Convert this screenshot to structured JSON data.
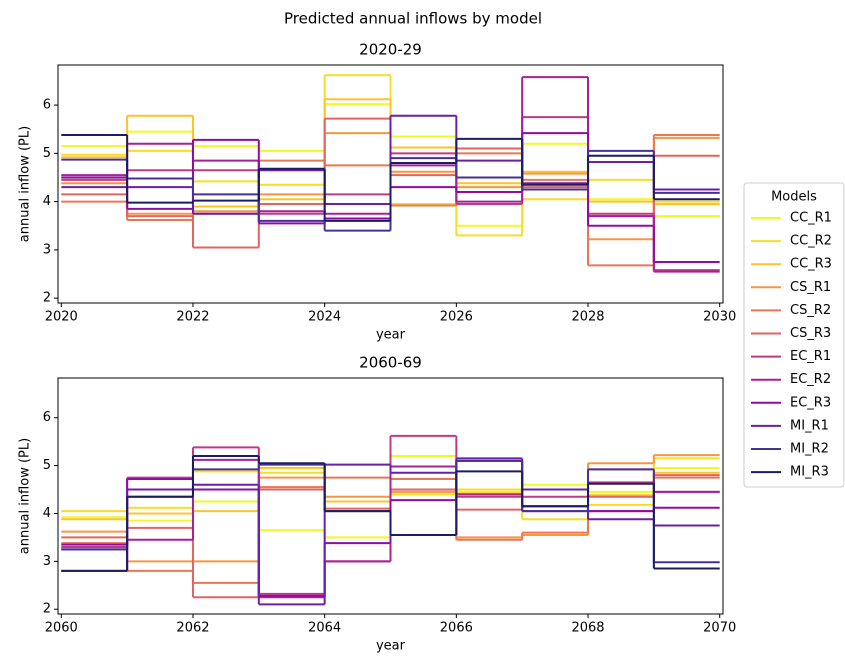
{
  "title": "Predicted annual inflows by model",
  "legend_title": "Models",
  "chart_data": [
    {
      "type": "step",
      "title": "2020-29",
      "xlabel": "year",
      "ylabel": "annual inflow (PL)",
      "x": [
        2020,
        2021,
        2022,
        2023,
        2024,
        2025,
        2026,
        2027,
        2028,
        2029
      ],
      "xlim": [
        2019.95,
        2030.05
      ],
      "xticks": [
        2020,
        2022,
        2024,
        2026,
        2028,
        2030
      ],
      "ylim": [
        1.9,
        6.83
      ],
      "yticks": [
        2,
        3,
        4,
        5,
        6
      ],
      "series": [
        {
          "name": "CC_R1",
          "color": "#f0f921",
          "values": [
            5.15,
            5.45,
            5.15,
            5.05,
            6.02,
            5.35,
            3.5,
            5.2,
            4.05,
            3.7
          ]
        },
        {
          "name": "CC_R2",
          "color": "#f9dc24",
          "values": [
            4.97,
            5.05,
            4.42,
            4.35,
            6.62,
            3.95,
            3.3,
            4.05,
            4.45,
            4.0
          ]
        },
        {
          "name": "CC_R3",
          "color": "#fdc328",
          "values": [
            4.92,
            5.78,
            3.9,
            4.05,
            6.12,
            5.12,
            4.38,
            4.62,
            4.0,
            3.95
          ]
        },
        {
          "name": "CS_R1",
          "color": "#f89540",
          "values": [
            4.38,
            3.75,
            3.8,
            4.15,
            5.42,
            4.62,
            4.3,
            4.58,
            3.22,
            5.32
          ]
        },
        {
          "name": "CS_R2",
          "color": "#eb7655",
          "values": [
            4.0,
            3.62,
            3.75,
            4.85,
            4.75,
            3.92,
            5.0,
            4.45,
            2.68,
            5.38
          ]
        },
        {
          "name": "CS_R3",
          "color": "#e16462",
          "values": [
            4.15,
            3.7,
            3.05,
            3.95,
            5.72,
            4.55,
            5.1,
            4.3,
            3.7,
            4.95
          ]
        },
        {
          "name": "EC_R1",
          "color": "#c03a83",
          "values": [
            4.45,
            4.65,
            4.65,
            3.75,
            4.15,
            5.0,
            3.95,
            5.75,
            3.75,
            2.58
          ]
        },
        {
          "name": "EC_R2",
          "color": "#a62098",
          "values": [
            4.55,
            5.2,
            4.85,
            3.8,
            3.75,
            4.75,
            4.0,
            6.58,
            3.7,
            2.55
          ]
        },
        {
          "name": "EC_R3",
          "color": "#8f0da4",
          "values": [
            4.5,
            3.85,
            5.28,
            3.55,
            3.65,
            4.3,
            4.2,
            5.42,
            3.5,
            2.75
          ]
        },
        {
          "name": "MI_R1",
          "color": "#6a1fa8",
          "values": [
            4.3,
            4.3,
            3.75,
            4.65,
            3.95,
            5.78,
            4.85,
            4.38,
            4.82,
            4.25
          ]
        },
        {
          "name": "MI_R2",
          "color": "#46309a",
          "values": [
            4.87,
            4.48,
            4.15,
            3.6,
            3.4,
            4.9,
            4.5,
            4.25,
            5.05,
            4.18
          ]
        },
        {
          "name": "MI_R3",
          "color": "#1c1c62",
          "values": [
            5.38,
            3.98,
            4.02,
            4.68,
            3.6,
            4.8,
            5.3,
            4.35,
            4.95,
            4.05
          ]
        }
      ]
    },
    {
      "type": "step",
      "title": "2060-69",
      "xlabel": "year",
      "ylabel": "annual inflow (PL)",
      "x": [
        2060,
        2061,
        2062,
        2063,
        2064,
        2065,
        2066,
        2067,
        2068,
        2069
      ],
      "xlim": [
        2059.95,
        2070.05
      ],
      "xticks": [
        2060,
        2062,
        2064,
        2066,
        2068,
        2070
      ],
      "ylim": [
        1.9,
        6.83
      ],
      "yticks": [
        2,
        3,
        4,
        5,
        6
      ],
      "series": [
        {
          "name": "CC_R1",
          "color": "#f0f921",
          "values": [
            3.92,
            3.85,
            4.25,
            3.65,
            3.5,
            5.2,
            4.45,
            4.6,
            4.45,
            4.95
          ]
        },
        {
          "name": "CC_R2",
          "color": "#f9dc24",
          "values": [
            4.05,
            4.12,
            4.88,
            4.85,
            4.05,
            4.4,
            4.5,
            3.88,
            4.18,
            5.15
          ]
        },
        {
          "name": "CC_R3",
          "color": "#fdc328",
          "values": [
            3.88,
            4.0,
            4.05,
            4.95,
            4.25,
            4.5,
            4.42,
            4.5,
            4.38,
            4.85
          ]
        },
        {
          "name": "CS_R1",
          "color": "#f89540",
          "values": [
            3.62,
            3.0,
            3.0,
            4.75,
            4.35,
            4.45,
            3.5,
            3.55,
            5.05,
            5.22
          ]
        },
        {
          "name": "CS_R2",
          "color": "#eb7655",
          "values": [
            3.38,
            2.8,
            2.55,
            4.55,
            4.75,
            4.72,
            3.45,
            3.6,
            4.92,
            4.75
          ]
        },
        {
          "name": "CS_R3",
          "color": "#e16462",
          "values": [
            3.5,
            3.7,
            2.25,
            4.5,
            4.1,
            4.5,
            4.08,
            4.15,
            4.35,
            4.8
          ]
        },
        {
          "name": "EC_R1",
          "color": "#c03a83",
          "values": [
            3.3,
            4.75,
            5.38,
            2.32,
            3.0,
            5.62,
            4.35,
            4.35,
            4.65,
            4.45
          ]
        },
        {
          "name": "EC_R2",
          "color": "#a62098",
          "values": [
            3.25,
            3.45,
            5.12,
            2.25,
            3.0,
            4.98,
            4.4,
            4.05,
            4.05,
            4.45
          ]
        },
        {
          "name": "EC_R3",
          "color": "#8f0da4",
          "values": [
            3.35,
            4.72,
            4.5,
            2.28,
            3.38,
            4.28,
            5.1,
            4.15,
            4.05,
            4.12
          ]
        },
        {
          "name": "MI_R1",
          "color": "#6a1fa8",
          "values": [
            2.8,
            4.5,
            4.6,
            2.1,
            5.02,
            4.85,
            5.15,
            4.5,
            3.88,
            3.75
          ]
        },
        {
          "name": "MI_R2",
          "color": "#46309a",
          "values": [
            3.25,
            4.35,
            4.92,
            5.02,
            4.05,
            3.55,
            5.1,
            4.05,
            4.92,
            2.98
          ]
        },
        {
          "name": "MI_R3",
          "color": "#1c1c62",
          "values": [
            2.8,
            4.35,
            5.2,
            5.05,
            4.05,
            3.55,
            4.88,
            4.15,
            4.62,
            2.85
          ]
        }
      ]
    }
  ]
}
